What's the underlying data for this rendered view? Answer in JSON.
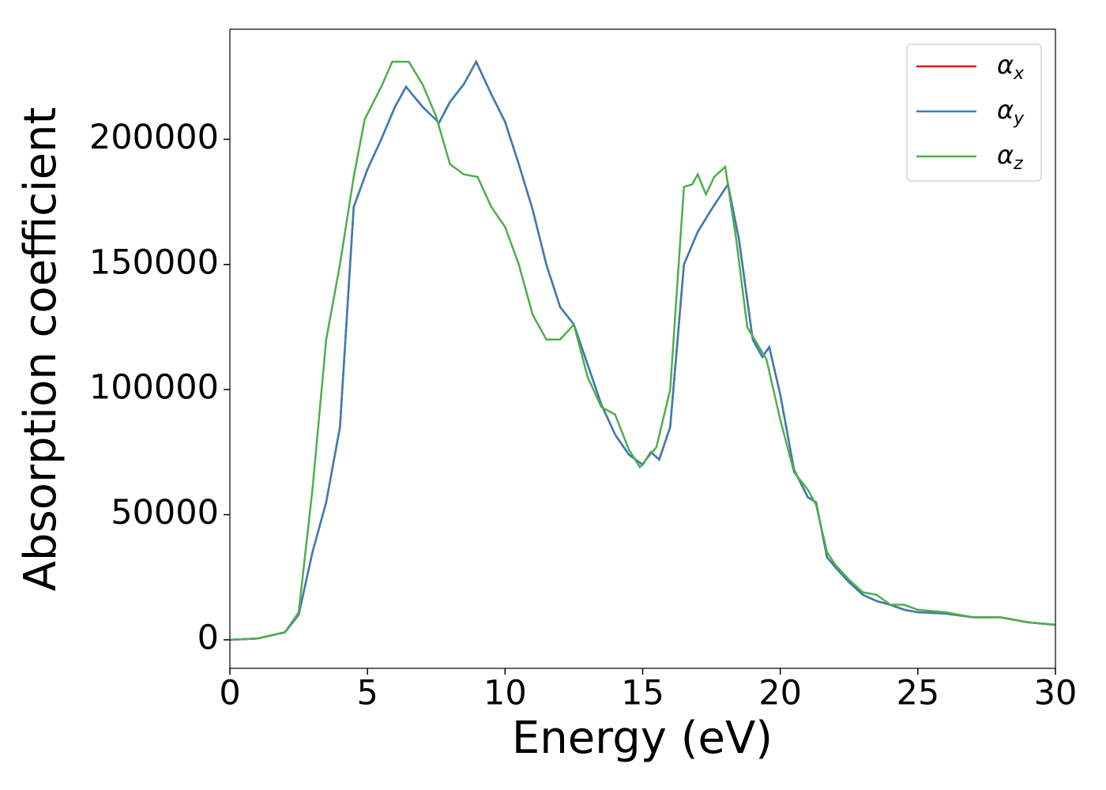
{
  "chart_data": {
    "type": "line",
    "xlabel": "Energy (eV)",
    "ylabel": "Absorption coefficient",
    "xlim": [
      0,
      30
    ],
    "ylim": [
      -11400,
      244000
    ],
    "xticks": [
      0,
      5,
      10,
      15,
      20,
      25,
      30
    ],
    "yticks": [
      0,
      50000,
      100000,
      150000,
      200000
    ],
    "legend": "upper right",
    "grid": false,
    "series": [
      {
        "name": "αx",
        "color": "#e41a1c",
        "x": [
          0,
          1,
          2,
          2.5,
          3,
          3.5,
          4,
          4.5,
          5,
          5.5,
          6,
          6.4,
          7,
          7.6,
          8,
          8.5,
          8.95,
          9.5,
          10,
          10.5,
          11,
          11.5,
          12,
          12.5,
          13,
          13.5,
          14,
          14.5,
          15,
          15.3,
          15.6,
          16,
          16.5,
          17,
          17.5,
          18.1,
          18.5,
          19,
          19.35,
          19.6,
          20,
          20.5,
          21,
          21.3,
          21.7,
          22,
          22.5,
          23,
          23.5,
          24,
          24.5,
          25,
          26,
          27,
          28,
          29,
          30
        ],
        "values": [
          0,
          500,
          3000,
          10000,
          35000,
          55000,
          85000,
          173000,
          188000,
          200000,
          213000,
          221000,
          213000,
          206600,
          215000,
          222000,
          231000,
          218000,
          207000,
          190000,
          172000,
          150000,
          133000,
          126000,
          110000,
          94000,
          82000,
          74000,
          70000,
          75000,
          72000,
          85000,
          150000,
          163000,
          172000,
          182000,
          160000,
          120000,
          113000,
          117000,
          98000,
          68000,
          57000,
          55000,
          33000,
          29000,
          23000,
          18000,
          15500,
          14000,
          12000,
          11000,
          10500,
          9000,
          9000,
          7000,
          6000
        ]
      },
      {
        "name": "αy",
        "color": "#377eb8",
        "x": [
          0,
          1,
          2,
          2.5,
          3,
          3.5,
          4,
          4.5,
          5,
          5.5,
          6,
          6.4,
          7,
          7.6,
          8,
          8.5,
          8.95,
          9.5,
          10,
          10.5,
          11,
          11.5,
          12,
          12.5,
          13,
          13.5,
          14,
          14.5,
          15,
          15.3,
          15.6,
          16,
          16.5,
          17,
          17.5,
          18.1,
          18.5,
          19,
          19.35,
          19.6,
          20,
          20.5,
          21,
          21.3,
          21.7,
          22,
          22.5,
          23,
          23.5,
          24,
          24.5,
          25,
          26,
          27,
          28,
          29,
          30
        ],
        "values": [
          0,
          500,
          3000,
          10000,
          35000,
          55000,
          85000,
          173000,
          188000,
          200000,
          213000,
          221000,
          213000,
          206600,
          215000,
          222000,
          231000,
          218000,
          207000,
          190000,
          172000,
          150000,
          133000,
          126000,
          110000,
          94000,
          82000,
          74000,
          70000,
          75000,
          72000,
          85000,
          150000,
          163000,
          172000,
          182000,
          160000,
          120000,
          113000,
          117000,
          98000,
          68000,
          57000,
          55000,
          33000,
          29000,
          23000,
          18000,
          15500,
          14000,
          12000,
          11000,
          10500,
          9000,
          9000,
          7000,
          6000
        ]
      },
      {
        "name": "αz",
        "color": "#4daf4a",
        "x": [
          0,
          1,
          2,
          2.5,
          3,
          3.5,
          4,
          4.5,
          4.9,
          5.5,
          5.9,
          6.5,
          7,
          7.5,
          8,
          8.5,
          9,
          9.5,
          10,
          10.5,
          11,
          11.5,
          12,
          12.5,
          13,
          13.5,
          14,
          14.5,
          14.9,
          15.5,
          16,
          16.5,
          16.8,
          17,
          17.3,
          17.6,
          18,
          18.4,
          18.8,
          19.5,
          20,
          20.5,
          21,
          21.3,
          21.7,
          22,
          22.5,
          23,
          23.5,
          24,
          24.5,
          25,
          26,
          27,
          28,
          29,
          30
        ],
        "values": [
          0,
          500,
          3000,
          11000,
          60000,
          120000,
          150000,
          185000,
          208000,
          221000,
          231000,
          231000,
          222000,
          209000,
          190000,
          186000,
          185000,
          173000,
          165000,
          150000,
          130000,
          120000,
          120000,
          126000,
          105000,
          93000,
          90000,
          76000,
          69000,
          77000,
          100000,
          181000,
          182000,
          186000,
          178000,
          185000,
          189000,
          160000,
          125000,
          112000,
          88000,
          67000,
          60000,
          54000,
          35000,
          30000,
          24000,
          19000,
          18000,
          14000,
          14000,
          12000,
          11000,
          9000,
          9000,
          7000,
          6000
        ]
      }
    ]
  }
}
